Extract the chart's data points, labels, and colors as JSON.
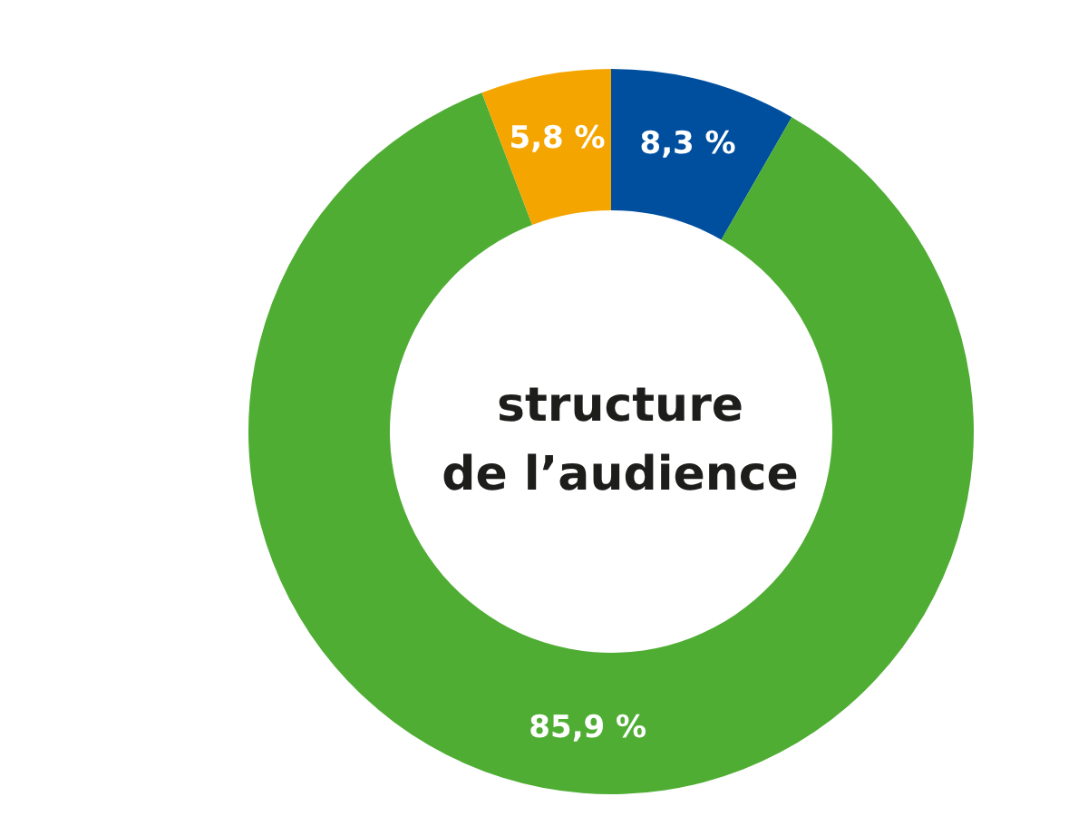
{
  "chart_data": {
    "type": "donut",
    "title": "structure\nde l’audience",
    "categories": [
      null,
      null,
      null
    ],
    "values": [
      8.3,
      85.9,
      5.8
    ],
    "colors": [
      "#004f9f",
      "#4fad33",
      "#f5a500"
    ],
    "value_labels": [
      "8,3 %",
      "85,9 %",
      "5,8 %"
    ]
  }
}
